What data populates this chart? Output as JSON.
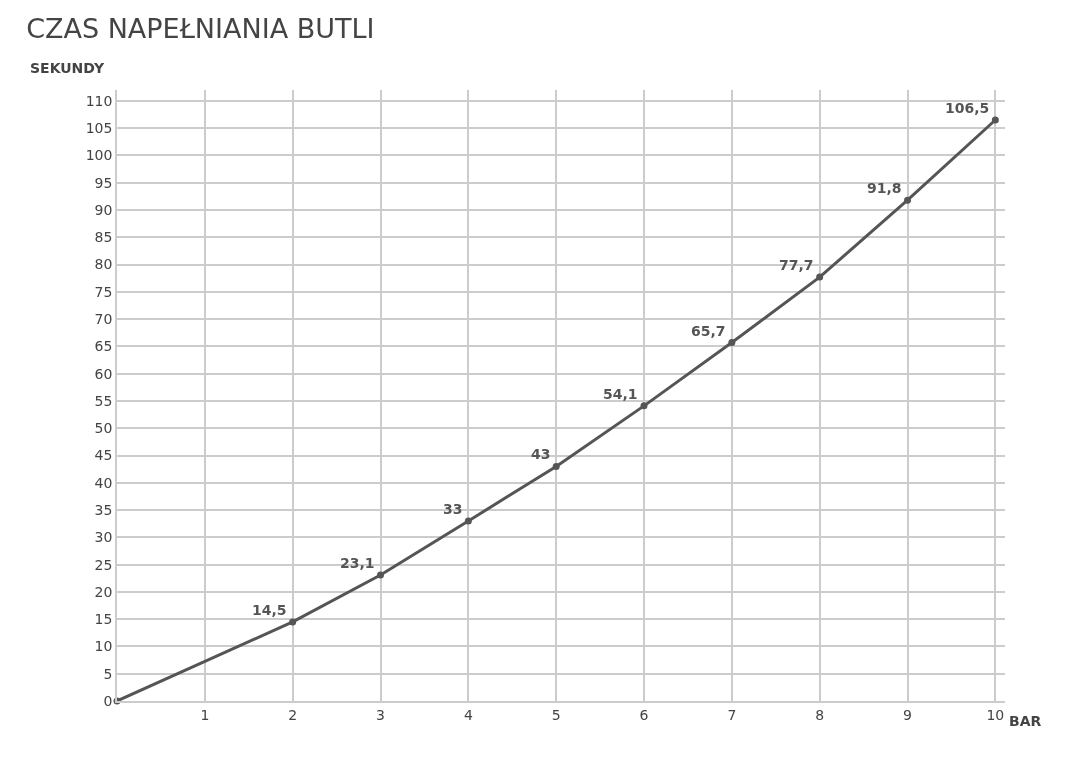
{
  "chart_data": {
    "type": "line",
    "title": "CZAS NAPEŁNIANIA BUTLI",
    "xlabel": "BAR",
    "ylabel": "SEKUNDY",
    "x": [
      0,
      2,
      3,
      4,
      5,
      6,
      7,
      8,
      9,
      10
    ],
    "series": [
      {
        "color": "#555555",
        "values": [
          0,
          14.5,
          23.1,
          33,
          43,
          54.1,
          65.7,
          77.7,
          91.8,
          106.5
        ],
        "value_labels": [
          null,
          "14,5",
          "23,1",
          "33",
          "43",
          "54,1",
          "65,7",
          "77,7",
          "91,8",
          "106,5"
        ]
      }
    ],
    "xlim": [
      0,
      10.11
    ],
    "xticks": [
      1,
      2,
      3,
      4,
      5,
      6,
      7,
      8,
      9,
      10
    ],
    "ylim": [
      0,
      112
    ],
    "yticks": [
      0,
      5,
      10,
      15,
      20,
      25,
      30,
      35,
      40,
      45,
      50,
      55,
      60,
      65,
      70,
      75,
      80,
      85,
      90,
      95,
      100,
      105,
      110
    ],
    "grid": true,
    "marker": "circle",
    "line_style": "solid"
  }
}
